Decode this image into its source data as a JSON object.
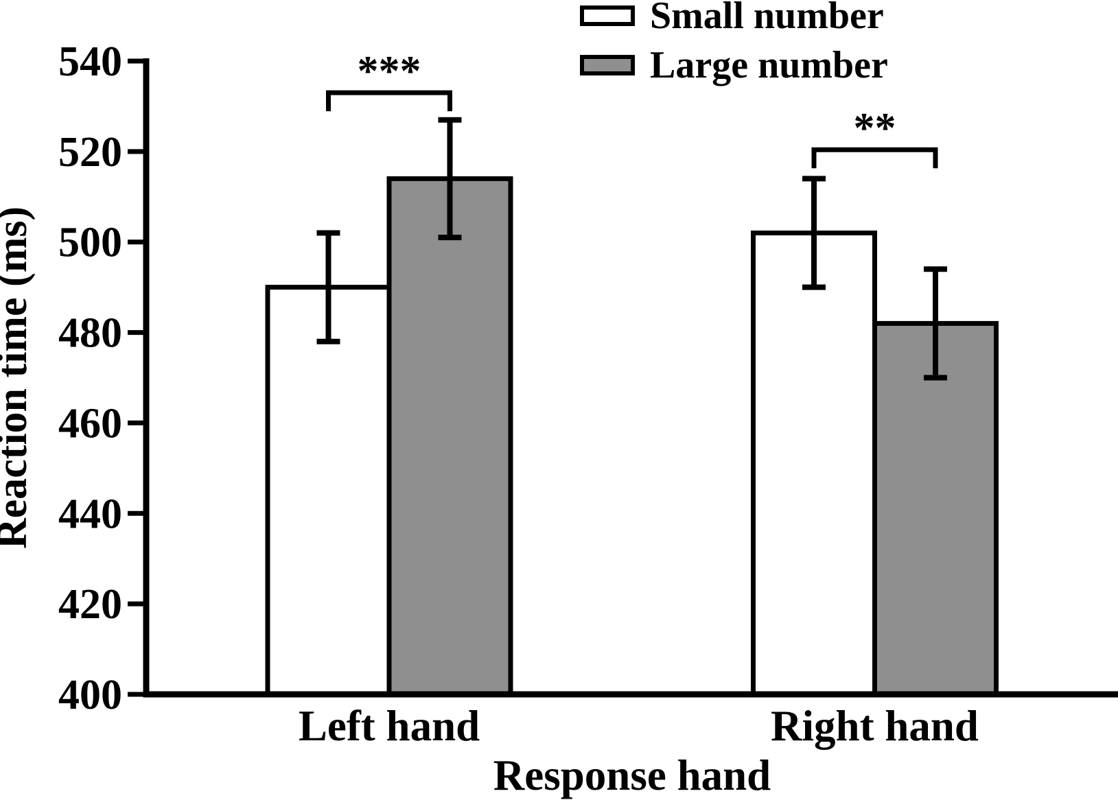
{
  "chart_data": {
    "type": "bar",
    "title": "",
    "xlabel": "Response hand",
    "ylabel": "Reaction time (ms)",
    "categories": [
      "Left hand",
      "Right hand"
    ],
    "series": [
      {
        "name": "Small number",
        "fill": "#FFFFFF",
        "values": [
          490,
          502
        ],
        "errors": [
          12,
          12
        ]
      },
      {
        "name": "Large number",
        "fill": "#8F8F8F",
        "values": [
          514,
          482
        ],
        "errors": [
          13,
          12
        ]
      }
    ],
    "ylim": [
      400,
      540
    ],
    "yticks": [
      400,
      420,
      440,
      460,
      480,
      500,
      520,
      540
    ],
    "grid": false,
    "legend_position": "top-right",
    "significance": [
      {
        "category": "Left hand",
        "label": "***",
        "bracket_value": 533
      },
      {
        "category": "Right hand",
        "label": "**",
        "bracket_value": 520.4
      }
    ],
    "axis_color": "#000000",
    "text_color": "#000000"
  },
  "legend": {
    "items": [
      {
        "label": "Small number",
        "fill": "#FFFFFF"
      },
      {
        "label": "Large number",
        "fill": "#8F8F8F"
      }
    ]
  }
}
